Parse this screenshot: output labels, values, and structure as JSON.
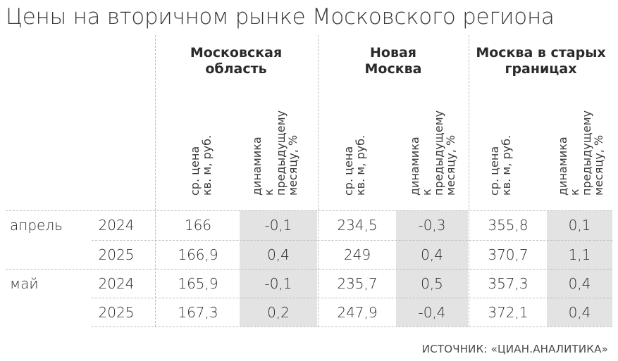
{
  "title": "Цены на вторичном рынке Московского региона",
  "groups": [
    "Московская\nобласть",
    "Новая\nМосква",
    "Москва в старых\nграницах"
  ],
  "subheaders": {
    "price": "ср. цена\nкв. м, руб.",
    "change": "динамика\nк предыдущему\nмесяцу, %"
  },
  "rows": [
    {
      "month": "апрель",
      "year": "2024",
      "values": [
        "166",
        "-0,1",
        "234,5",
        "-0,3",
        "355,8",
        "0,1"
      ]
    },
    {
      "month": "",
      "year": "2025",
      "values": [
        "166,9",
        "0,4",
        "249",
        "0,4",
        "370,7",
        "1,1"
      ]
    },
    {
      "month": "май",
      "year": "2024",
      "values": [
        "165,9",
        "-0,1",
        "235,7",
        "0,5",
        "357,3",
        "0,4"
      ]
    },
    {
      "month": "",
      "year": "2025",
      "values": [
        "167,3",
        "0,2",
        "247,9",
        "-0,4",
        "372,1",
        "0,4"
      ]
    }
  ],
  "source": "ИСТОЧНИК: «ЦИАН.АНАЛИТИКА»"
}
